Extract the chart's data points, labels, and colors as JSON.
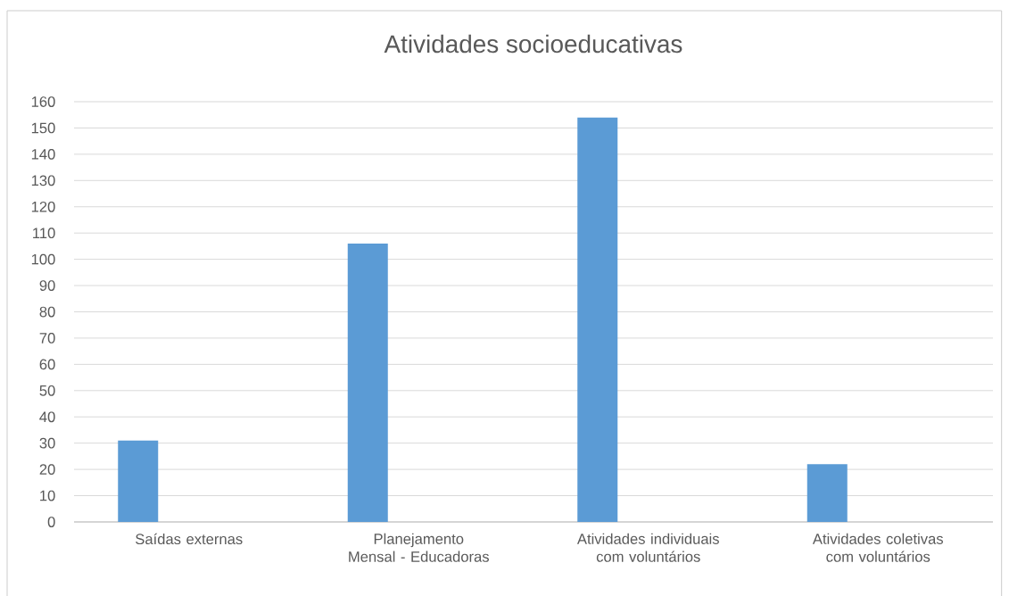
{
  "chart_data": {
    "type": "bar",
    "title": "Atividades socioeducativas",
    "categories": [
      "Saídas externas",
      "Planejamento Mensal - Educadoras",
      "Atividades individuais com voluntários",
      "Atividades coletivas com voluntários"
    ],
    "values": [
      31,
      106,
      154,
      22
    ],
    "color": "#5b9bd5",
    "ylim": [
      0,
      160
    ],
    "yticks": [
      0,
      10,
      20,
      30,
      40,
      50,
      60,
      70,
      80,
      90,
      100,
      110,
      120,
      130,
      140,
      150,
      160
    ],
    "grid": "y"
  }
}
